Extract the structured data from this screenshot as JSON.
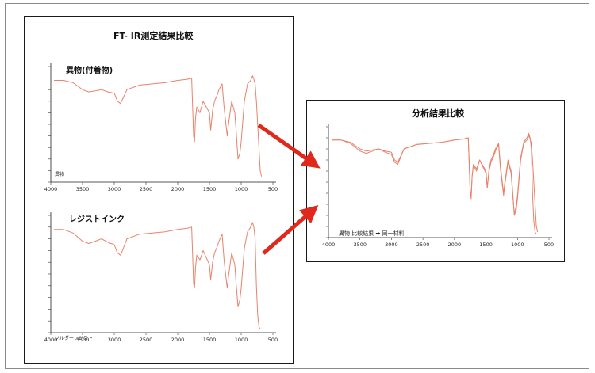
{
  "figure": {
    "left_title": "FT- IR測定結果比較",
    "right_title": "分析結果比較"
  },
  "colors": {
    "spectrum_line": "#e8836b",
    "arrow": "#e0281c",
    "frame": "#1a1a1a"
  },
  "chart_data": [
    {
      "type": "line",
      "title": "異物(付着物)",
      "corner_label": "異物",
      "x_ticks": [
        4000,
        3500,
        3000,
        2500,
        2000,
        1500,
        1000,
        500
      ],
      "xlim": [
        4000,
        500
      ],
      "ylim": [
        0,
        100
      ],
      "grid": false,
      "series": [
        {
          "x": [
            3950,
            3800,
            3650,
            3500,
            3400,
            3300,
            3200,
            3100,
            3000,
            2950,
            2900,
            2850,
            2800,
            2600,
            2400,
            2200,
            2000,
            1850,
            1780,
            1750,
            1735,
            1720,
            1700,
            1650,
            1600,
            1550,
            1500,
            1480,
            1450,
            1420,
            1380,
            1350,
            1300,
            1270,
            1250,
            1220,
            1200,
            1150,
            1100,
            1080,
            1050,
            1020,
            1000,
            950,
            900,
            850,
            820,
            800,
            780,
            760,
            720,
            700,
            680
          ],
          "y": [
            88,
            88,
            86,
            80,
            78,
            79,
            80,
            78,
            77,
            70,
            68,
            74,
            80,
            84,
            85,
            86,
            88,
            89,
            90,
            40,
            35,
            55,
            65,
            60,
            70,
            65,
            60,
            45,
            62,
            70,
            75,
            80,
            85,
            65,
            55,
            40,
            50,
            70,
            60,
            45,
            20,
            25,
            35,
            70,
            85,
            88,
            92,
            89,
            85,
            70,
            30,
            10,
            5
          ]
        }
      ]
    },
    {
      "type": "line",
      "title": "レジストインク",
      "corner_label": "ソルダーレジスト",
      "x_ticks": [
        4000,
        3500,
        3000,
        2500,
        2000,
        1500,
        1000,
        500
      ],
      "xlim": [
        4000,
        500
      ],
      "ylim": [
        0,
        100
      ],
      "grid": false,
      "series": [
        {
          "x": [
            3950,
            3800,
            3650,
            3500,
            3400,
            3300,
            3200,
            3100,
            3000,
            2950,
            2900,
            2850,
            2800,
            2600,
            2400,
            2200,
            2000,
            1850,
            1780,
            1750,
            1735,
            1720,
            1700,
            1650,
            1600,
            1550,
            1500,
            1480,
            1450,
            1420,
            1380,
            1350,
            1300,
            1270,
            1250,
            1220,
            1200,
            1150,
            1100,
            1080,
            1050,
            1020,
            1000,
            950,
            900,
            850,
            820,
            800,
            780,
            760,
            740,
            720,
            700
          ],
          "y": [
            88,
            88,
            85,
            78,
            76,
            78,
            80,
            77,
            75,
            68,
            66,
            73,
            80,
            84,
            85,
            86,
            88,
            89,
            90,
            42,
            38,
            55,
            66,
            62,
            70,
            64,
            58,
            45,
            60,
            68,
            73,
            78,
            84,
            62,
            52,
            38,
            48,
            68,
            58,
            42,
            22,
            28,
            38,
            72,
            86,
            90,
            94,
            90,
            80,
            40,
            15,
            5,
            3
          ]
        }
      ]
    },
    {
      "type": "line",
      "title": "",
      "corner_label": "異物 比較結果 ➡ 同一材料",
      "x_ticks": [
        4000,
        3500,
        3000,
        2500,
        2000,
        1500,
        1000,
        500
      ],
      "xlim": [
        4000,
        500
      ],
      "ylim": [
        0,
        100
      ],
      "grid": false,
      "series": [
        {
          "x": [
            3950,
            3800,
            3650,
            3500,
            3400,
            3300,
            3200,
            3100,
            3000,
            2950,
            2900,
            2850,
            2800,
            2600,
            2400,
            2200,
            2000,
            1850,
            1780,
            1750,
            1735,
            1720,
            1700,
            1650,
            1600,
            1550,
            1500,
            1480,
            1450,
            1420,
            1380,
            1350,
            1300,
            1270,
            1250,
            1220,
            1200,
            1150,
            1100,
            1080,
            1050,
            1020,
            1000,
            950,
            900,
            850,
            820,
            800,
            780,
            760,
            720,
            700,
            680
          ],
          "y": [
            88,
            88,
            86,
            80,
            78,
            79,
            80,
            78,
            77,
            70,
            68,
            74,
            80,
            84,
            85,
            86,
            88,
            89,
            90,
            40,
            35,
            55,
            65,
            60,
            70,
            65,
            60,
            45,
            62,
            70,
            75,
            80,
            85,
            65,
            55,
            40,
            50,
            70,
            60,
            45,
            20,
            25,
            35,
            70,
            85,
            88,
            92,
            89,
            85,
            70,
            30,
            10,
            5
          ]
        },
        {
          "x": [
            3950,
            3800,
            3650,
            3500,
            3400,
            3300,
            3200,
            3100,
            3000,
            2950,
            2900,
            2850,
            2800,
            2600,
            2400,
            2200,
            2000,
            1850,
            1780,
            1750,
            1735,
            1720,
            1700,
            1650,
            1600,
            1550,
            1500,
            1480,
            1450,
            1420,
            1380,
            1350,
            1300,
            1270,
            1250,
            1220,
            1200,
            1150,
            1100,
            1080,
            1050,
            1020,
            1000,
            950,
            900,
            850,
            820,
            800,
            780,
            760,
            740,
            720,
            700
          ],
          "y": [
            88,
            88,
            85,
            78,
            76,
            78,
            80,
            77,
            75,
            68,
            66,
            73,
            80,
            84,
            85,
            86,
            88,
            89,
            90,
            42,
            38,
            55,
            66,
            62,
            70,
            64,
            58,
            45,
            60,
            68,
            73,
            78,
            84,
            62,
            52,
            38,
            48,
            68,
            58,
            42,
            22,
            28,
            38,
            72,
            86,
            90,
            94,
            90,
            80,
            40,
            15,
            5,
            3
          ]
        }
      ]
    }
  ]
}
